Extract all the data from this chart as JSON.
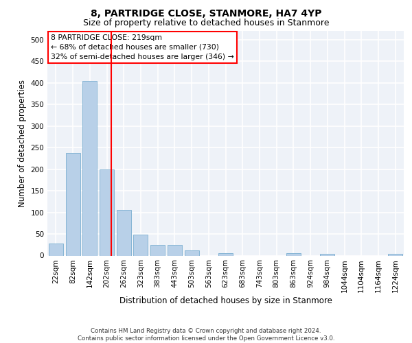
{
  "title": "8, PARTRIDGE CLOSE, STANMORE, HA7 4YP",
  "subtitle": "Size of property relative to detached houses in Stanmore",
  "xlabel": "Distribution of detached houses by size in Stanmore",
  "ylabel": "Number of detached properties",
  "bar_labels": [
    "22sqm",
    "82sqm",
    "142sqm",
    "202sqm",
    "262sqm",
    "323sqm",
    "383sqm",
    "443sqm",
    "503sqm",
    "563sqm",
    "623sqm",
    "683sqm",
    "743sqm",
    "803sqm",
    "863sqm",
    "924sqm",
    "984sqm",
    "1044sqm",
    "1104sqm",
    "1164sqm",
    "1224sqm"
  ],
  "bar_values": [
    27,
    238,
    404,
    199,
    105,
    48,
    25,
    25,
    12,
    0,
    6,
    0,
    0,
    0,
    5,
    0,
    4,
    0,
    0,
    0,
    4
  ],
  "bar_color": "#b8d0e8",
  "bar_edge_color": "#7aaed0",
  "vline_pos": 3.28,
  "vline_color": "red",
  "annotation_title": "8 PARTRIDGE CLOSE: 219sqm",
  "annotation_line2": "← 68% of detached houses are smaller (730)",
  "annotation_line3": "32% of semi-detached houses are larger (346) →",
  "annotation_box_color": "white",
  "annotation_box_edge_color": "red",
  "footer_line1": "Contains HM Land Registry data © Crown copyright and database right 2024.",
  "footer_line2": "Contains public sector information licensed under the Open Government Licence v3.0.",
  "ylim": [
    0,
    520
  ],
  "yticks": [
    0,
    50,
    100,
    150,
    200,
    250,
    300,
    350,
    400,
    450,
    500
  ],
  "bg_color": "#eef2f8",
  "grid_color": "white",
  "title_fontsize": 10,
  "subtitle_fontsize": 9,
  "axis_label_fontsize": 8.5,
  "tick_fontsize": 7.5
}
